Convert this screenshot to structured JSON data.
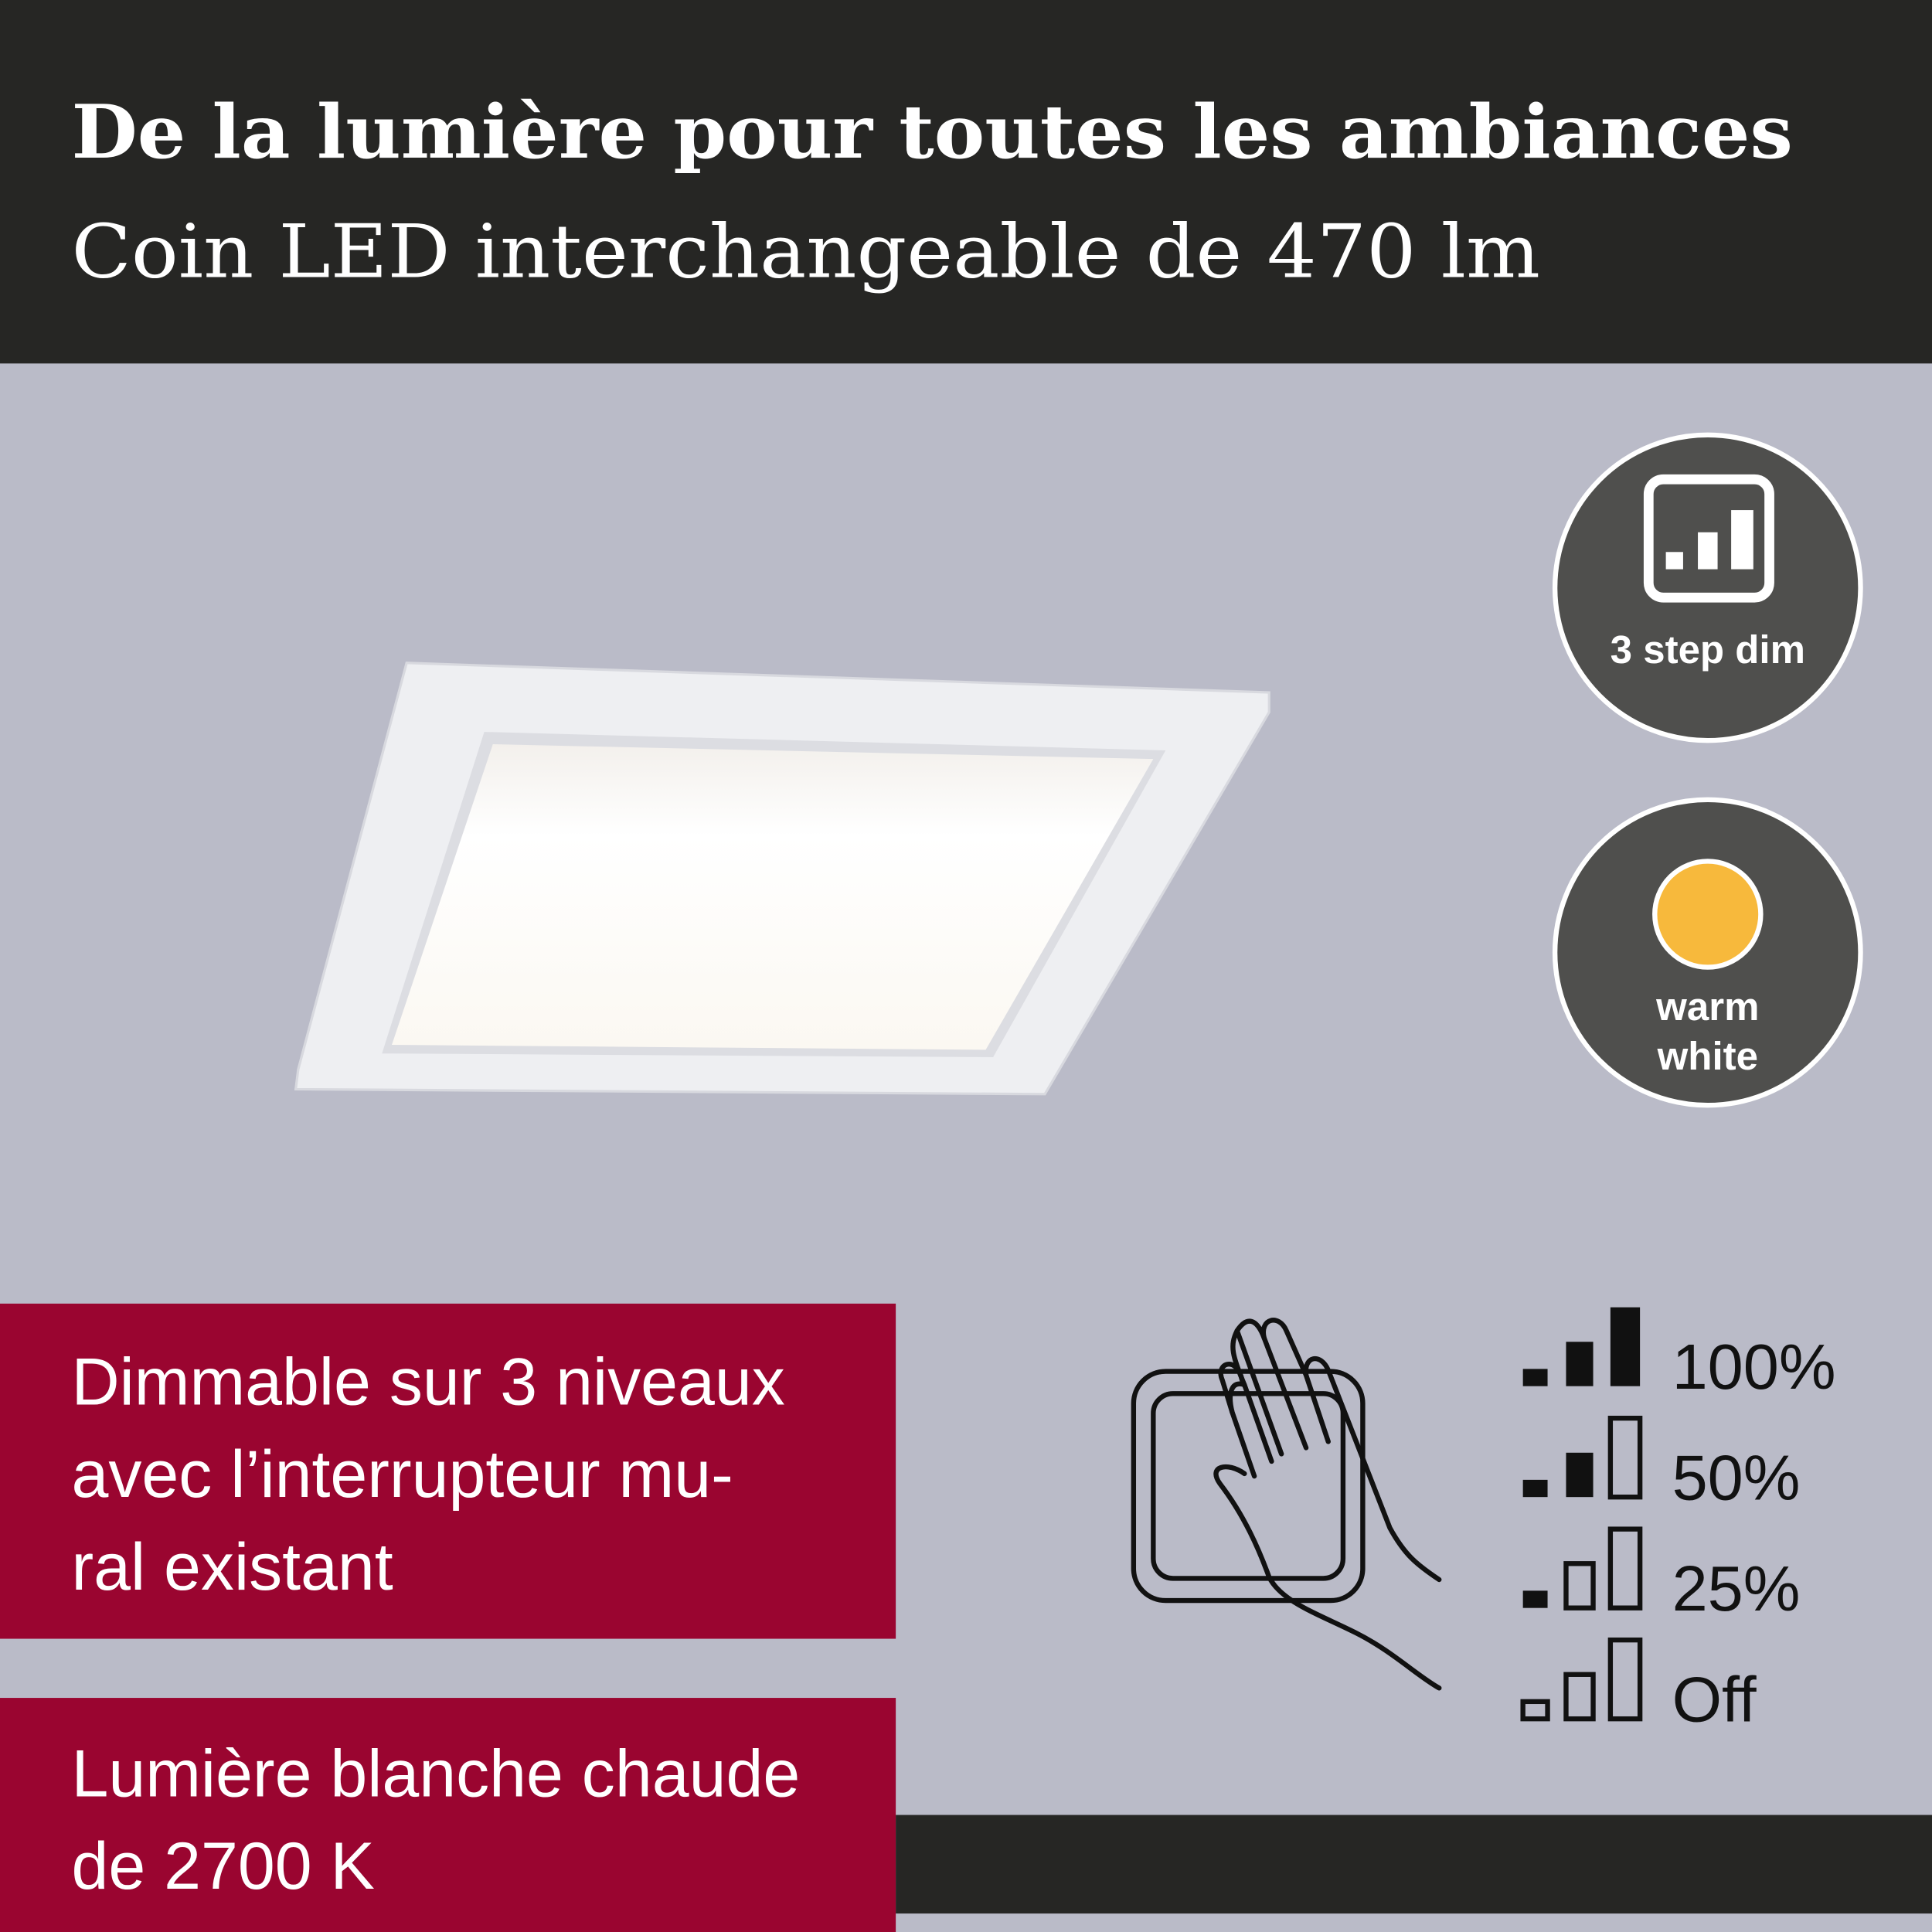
{
  "header": {
    "title": "De la lumière pour toutes les ambiances",
    "subtitle": "Coin LED interchangeable de 470 lm"
  },
  "badges": [
    {
      "lines": [
        "3 step dim"
      ]
    },
    {
      "lines": [
        "warm",
        "white"
      ]
    }
  ],
  "boxes": [
    {
      "lines": [
        "Dimmable sur 3 niveaux",
        "avec l’interrupteur mu-",
        "ral existant"
      ]
    },
    {
      "lines": [
        "Lumière blanche chaude",
        "de 2700 K"
      ]
    }
  ],
  "levels": [
    "100%",
    "50%",
    "25%",
    "Off"
  ]
}
